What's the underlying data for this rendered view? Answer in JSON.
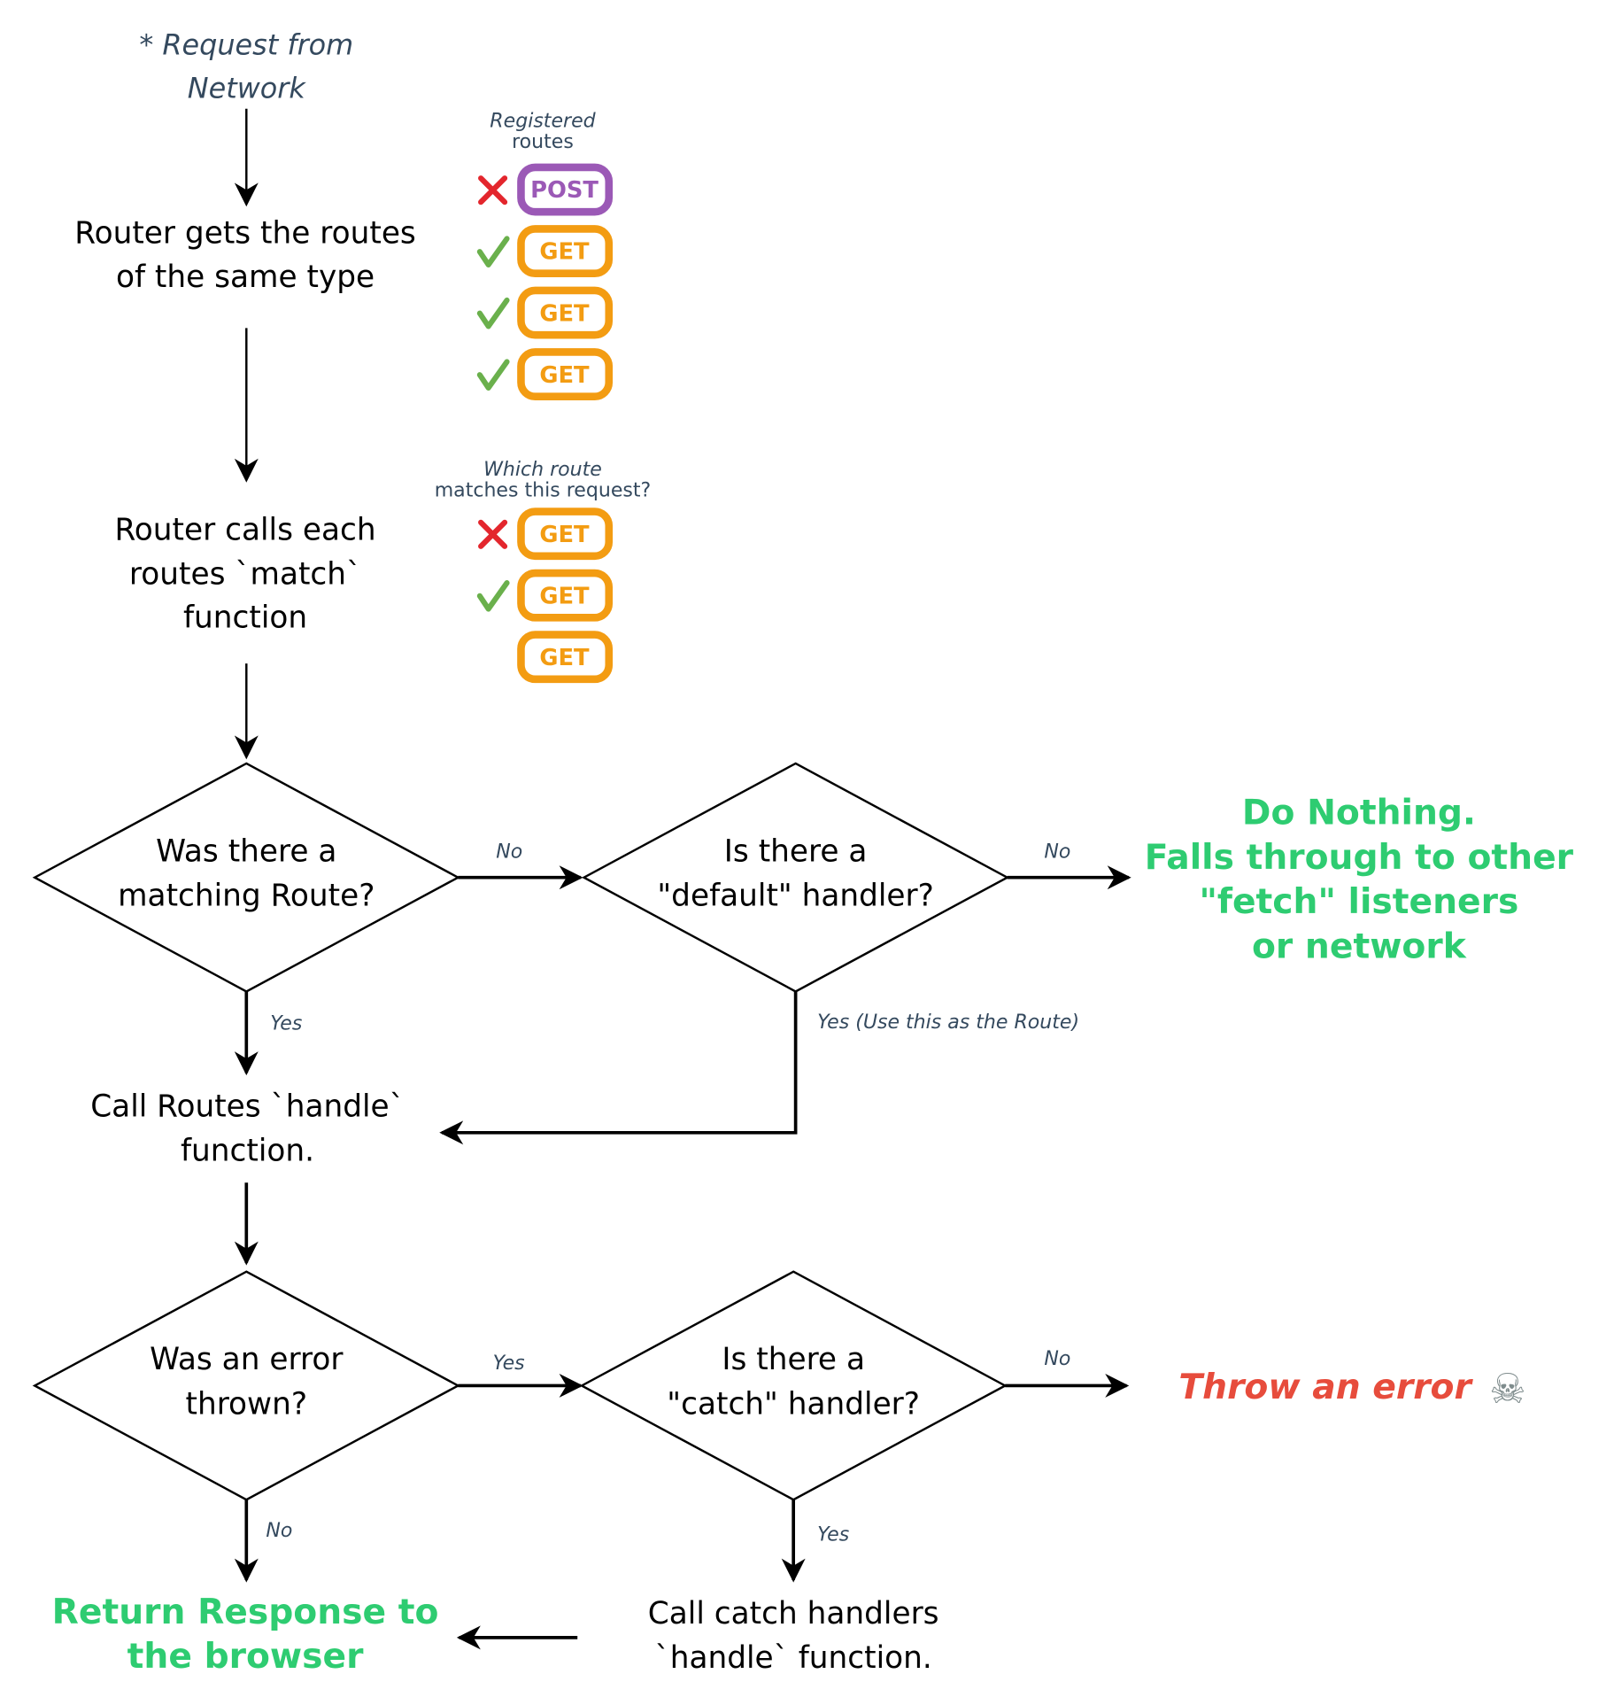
{
  "start": {
    "line1": "* Request from",
    "line2": "Network"
  },
  "step_get_routes": {
    "line1": "Router gets the routes",
    "line2": "of the same type"
  },
  "registered_routes": {
    "title_line1": "Registered",
    "title_line2": "routes",
    "items": [
      {
        "method": "POST",
        "status": "cross"
      },
      {
        "method": "GET",
        "status": "check"
      },
      {
        "method": "GET",
        "status": "check"
      },
      {
        "method": "GET",
        "status": "check"
      }
    ]
  },
  "step_match": {
    "line1": "Router calls each",
    "line2": "routes `match`",
    "line3": "function"
  },
  "matching_routes": {
    "title_line1": "Which route",
    "title_line2": "matches this request?",
    "items": [
      {
        "method": "GET",
        "status": "cross"
      },
      {
        "method": "GET",
        "status": "check"
      },
      {
        "method": "GET",
        "status": "none"
      }
    ]
  },
  "decision_match": {
    "line1": "Was there a",
    "line2": "matching Route?",
    "no_label": "No",
    "yes_label": "Yes"
  },
  "decision_default": {
    "line1": "Is there a",
    "line2": "\"default\" handler?",
    "no_label": "No",
    "yes_label": "Yes (Use this as the Route)"
  },
  "do_nothing": {
    "line1": "Do Nothing.",
    "line2": "Falls through to other",
    "line3": "\"fetch\" listeners",
    "line4": "or network"
  },
  "step_handle": {
    "line1": "Call Routes `handle`",
    "line2": "function."
  },
  "decision_error": {
    "line1": "Was an error",
    "line2": "thrown?",
    "yes_label": "Yes",
    "no_label": "No"
  },
  "decision_catch": {
    "line1": "Is there a",
    "line2": "\"catch\" handler?",
    "no_label": "No",
    "yes_label": "Yes"
  },
  "throw_error": {
    "text": "Throw an error",
    "icon": "☠"
  },
  "return_response": {
    "line1": "Return Response to",
    "line2": "the browser"
  },
  "step_catch": {
    "line1": "Call catch handlers",
    "line2": "`handle` function."
  },
  "colors": {
    "post": "#9b59b6",
    "get": "#f39c12",
    "success": "#2ecc71",
    "error": "#e74c3c",
    "check": "#6ab04c",
    "cross": "#e3262d",
    "note": "#34495e"
  }
}
